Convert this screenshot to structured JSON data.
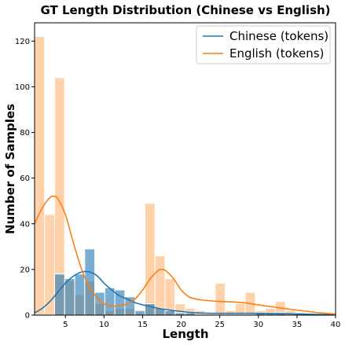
{
  "chart_data": {
    "type": "bar",
    "title": "GT Length Distribution (Chinese vs English)",
    "xlabel": "Length",
    "ylabel": "Number of Samples",
    "xlim": [
      1,
      40
    ],
    "ylim": [
      0,
      128
    ],
    "xticks": [
      5,
      10,
      15,
      20,
      25,
      30,
      35,
      40
    ],
    "yticks": [
      0,
      20,
      40,
      60,
      80,
      100,
      120
    ],
    "bin_width": 1.3,
    "grid": false,
    "legend_placement": "top-right",
    "series": [
      {
        "name": "Chinese (tokens)",
        "color": "#1f77b4",
        "kind": "histogram",
        "bins": [
          {
            "x": 3.6,
            "value": 18
          },
          {
            "x": 4.9,
            "value": 16
          },
          {
            "x": 6.2,
            "value": 18
          },
          {
            "x": 7.5,
            "value": 29
          },
          {
            "x": 8.8,
            "value": 10
          },
          {
            "x": 10.1,
            "value": 12
          },
          {
            "x": 11.4,
            "value": 11
          },
          {
            "x": 12.7,
            "value": 8
          },
          {
            "x": 14.0,
            "value": 2
          },
          {
            "x": 15.3,
            "value": 5
          },
          {
            "x": 16.6,
            "value": 3
          },
          {
            "x": 17.9,
            "value": 2
          },
          {
            "x": 19.2,
            "value": 1
          },
          {
            "x": 20.5,
            "value": 1
          },
          {
            "x": 29.6,
            "value": 1
          },
          {
            "x": 30.9,
            "value": 1
          },
          {
            "x": 32.2,
            "value": 1
          },
          {
            "x": 34.8,
            "value": 1
          }
        ],
        "kde": {
          "x": [
            1,
            2,
            3,
            4,
            5,
            6,
            7,
            8,
            9,
            10,
            11,
            12,
            13,
            14,
            15,
            16,
            17,
            18,
            19,
            20,
            22,
            25,
            30,
            35,
            40
          ],
          "y": [
            1,
            3,
            6,
            10,
            14,
            17,
            18.8,
            19,
            17.5,
            14,
            11,
            8.5,
            7,
            5.5,
            4.5,
            3.8,
            3,
            2.5,
            2,
            1.6,
            1,
            0.8,
            0.8,
            0.5,
            0.2
          ]
        }
      },
      {
        "name": "English (tokens)",
        "color": "#ff7f0e",
        "kind": "histogram",
        "bins": [
          {
            "x": 1.0,
            "value": 122
          },
          {
            "x": 2.3,
            "value": 44
          },
          {
            "x": 3.6,
            "value": 104
          },
          {
            "x": 4.9,
            "value": 15
          },
          {
            "x": 6.2,
            "value": 9
          },
          {
            "x": 7.5,
            "value": 15
          },
          {
            "x": 8.8,
            "value": 5
          },
          {
            "x": 10.1,
            "value": 2
          },
          {
            "x": 11.4,
            "value": 3
          },
          {
            "x": 12.7,
            "value": 3
          },
          {
            "x": 14.0,
            "value": 1
          },
          {
            "x": 15.3,
            "value": 49
          },
          {
            "x": 16.6,
            "value": 26
          },
          {
            "x": 17.9,
            "value": 16
          },
          {
            "x": 19.2,
            "value": 5
          },
          {
            "x": 20.5,
            "value": 3
          },
          {
            "x": 21.8,
            "value": 2
          },
          {
            "x": 23.1,
            "value": 1
          },
          {
            "x": 24.4,
            "value": 14
          },
          {
            "x": 25.7,
            "value": 2
          },
          {
            "x": 27.0,
            "value": 5
          },
          {
            "x": 28.3,
            "value": 10
          },
          {
            "x": 29.6,
            "value": 2
          },
          {
            "x": 30.9,
            "value": 3
          },
          {
            "x": 32.2,
            "value": 6
          },
          {
            "x": 33.5,
            "value": 2
          },
          {
            "x": 34.8,
            "value": 1
          }
        ],
        "kde": {
          "x": [
            1,
            2,
            3,
            3.5,
            4,
            5,
            6,
            7,
            8,
            9,
            10,
            11,
            12,
            13,
            14,
            15,
            16,
            17,
            17.5,
            18,
            19,
            20,
            21,
            22,
            23,
            25,
            28,
            31,
            35,
            38,
            40
          ],
          "y": [
            40,
            47,
            51.5,
            52,
            51,
            44,
            32,
            21,
            13,
            8,
            5,
            4,
            4,
            5,
            7,
            11,
            16,
            19.5,
            20,
            19.5,
            16,
            11,
            8,
            7,
            6.5,
            6,
            5.5,
            4,
            2.2,
            1,
            0.5
          ]
        }
      }
    ]
  }
}
